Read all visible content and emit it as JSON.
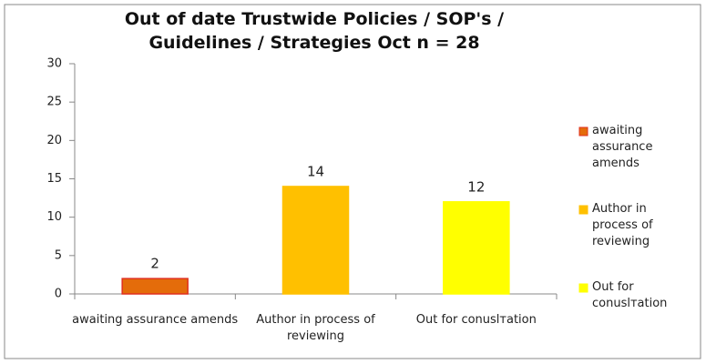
{
  "chart_data": {
    "type": "bar",
    "title": "Out of date Trustwide Policies / SOP's / Guidelines / Strategies Oct n = 28",
    "categories": [
      "awaiting assurance amends",
      "Author in process of reviewing",
      "Out for conuslтation"
    ],
    "values": [
      2,
      14,
      12
    ],
    "colors": [
      "#e46c0a",
      "#ffc000",
      "#ffff00"
    ],
    "ylim": [
      0,
      30
    ],
    "yticks": [
      0,
      5,
      10,
      15,
      20,
      25,
      30
    ],
    "grid": false,
    "legend": "right"
  }
}
